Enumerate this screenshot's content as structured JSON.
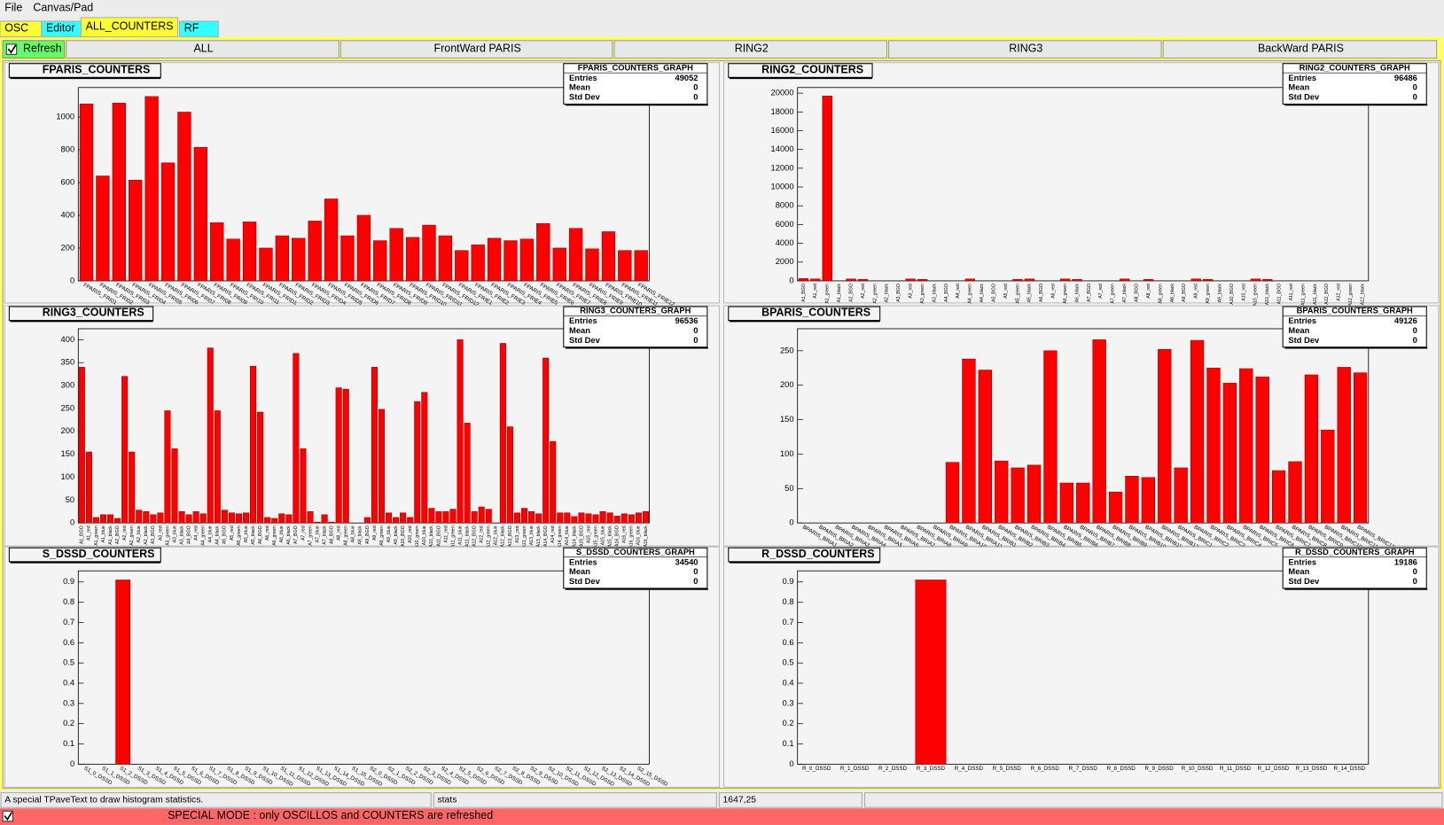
{
  "menu": [
    "File",
    "Canvas/Pad"
  ],
  "tabs": [
    "OSC",
    "Editor",
    "ALL_COUNTERS",
    "RF"
  ],
  "refresh": "Refresh",
  "buttons": [
    "ALL",
    "FrontWard PARIS",
    "RING2",
    "RING3",
    "BackWard PARIS"
  ],
  "chart_data": [
    {
      "type": "bar",
      "title": "FPARIS_COUNTERS",
      "color": "#ff0000",
      "categories": [
        "FPARIS_FRI01",
        "FPARIS_FRI02",
        "FPARIS_FRI03",
        "FPARIS_FRI04",
        "FPARIS_FRI05",
        "FPARIS_FRI06",
        "FPARIS_FRI07",
        "FPARIS_FRI08",
        "FPARIS_FRI09",
        "FPARIS_FRI10",
        "FPARIS_FRI11",
        "FPARIS_FRID1",
        "FPARIS_FRID2",
        "FPARIS_FRID3",
        "FPARIS_FRID4",
        "FPARIS_FRID5",
        "FPARIS_FRID6",
        "FPARIS_FRID7",
        "FPARIS_FRID8",
        "FPARIS_FRID9",
        "FPARIS_FRID10",
        "FPARIS_FRID11",
        "FPARIS_FRID12",
        "FPARIS_FRIE1",
        "FPARIS_FRIE2",
        "FPARIS_FRIE3",
        "FPARIS_FRIE4",
        "FPARIS_FRIE5",
        "FPARIS_FRIE6",
        "FPARIS_FRIE7",
        "FPARIS_FRIE8",
        "FPARIS_FRIE9",
        "FPARIS_FRIE10",
        "FPARIS_FRIE11",
        "FPARIS_FRIE12"
      ],
      "values": [
        1080,
        640,
        1085,
        615,
        1125,
        720,
        1030,
        815,
        355,
        255,
        360,
        200,
        275,
        260,
        365,
        500,
        275,
        400,
        245,
        320,
        265,
        340,
        275,
        185,
        220,
        260,
        245,
        255,
        350,
        200,
        320,
        195,
        300,
        185,
        185
      ],
      "ylim": [
        0,
        1180
      ],
      "yticks": [
        0,
        200,
        400,
        600,
        800,
        1000
      ],
      "stats": {
        "title": "FPARIS_COUNTERS_GRAPH",
        "rows": [
          {
            "label": "Entries",
            "value": 49052
          },
          {
            "label": "Mean",
            "value": 0
          },
          {
            "label": "Std Dev",
            "value": 0
          }
        ]
      }
    },
    {
      "type": "bar",
      "title": "RING2_COUNTERS",
      "color": "#ff0000",
      "categories": [
        "A1_BGO",
        "A1_red",
        "A1_green",
        "A1_black",
        "A2_BGO",
        "A2_red",
        "A2_green",
        "A2_black",
        "A3_BGO",
        "A3_red",
        "A3_green",
        "A3_black",
        "A4_BGO",
        "A4_red",
        "A4_green",
        "A4_black",
        "A5_BGO",
        "A5_red",
        "A5_green",
        "A5_black",
        "A6_BGO",
        "A6_red",
        "A6_green",
        "A6_black",
        "A7_BGO",
        "A7_red",
        "A7_green",
        "A7_black",
        "A8_BGO",
        "A8_red",
        "A8_green",
        "A8_black",
        "A9_BGO",
        "A9_red",
        "A9_green",
        "A9_black",
        "A10_BGO",
        "A10_red",
        "A10_green",
        "A10_black",
        "A11_BGO",
        "A11_red",
        "A11_green",
        "A11_black",
        "A12_BGO",
        "A12_red",
        "A12_green",
        "A12_black"
      ],
      "values": [
        250,
        200,
        19700,
        0,
        200,
        150,
        0,
        0,
        0,
        200,
        150,
        0,
        0,
        0,
        200,
        0,
        0,
        0,
        150,
        200,
        0,
        0,
        200,
        150,
        0,
        0,
        0,
        200,
        0,
        150,
        0,
        0,
        0,
        200,
        150,
        0,
        0,
        0,
        200,
        150,
        0,
        0,
        0,
        0,
        0,
        0,
        0,
        0
      ],
      "ylim": [
        0,
        20600
      ],
      "yticks": [
        0,
        2000,
        4000,
        6000,
        8000,
        10000,
        12000,
        14000,
        16000,
        18000,
        20000
      ],
      "stats": {
        "title": "RING2_COUNTERS_GRAPH",
        "rows": [
          {
            "label": "Entries",
            "value": 96486
          },
          {
            "label": "Mean",
            "value": 0
          },
          {
            "label": "Std Dev",
            "value": 0
          }
        ]
      }
    },
    {
      "type": "bar",
      "title": "RING3_COUNTERS",
      "color": "#ff0000",
      "categories": [
        "A1_BGO",
        "A1_red",
        "A1_green",
        "A1_blue",
        "A1_black",
        "A2_BGO",
        "A2_red",
        "A2_green",
        "A2_blue",
        "A2_black",
        "A3_BGO",
        "A3_red",
        "A3_green",
        "A3_blue",
        "A3_black",
        "A4_BGO",
        "A4_red",
        "A4_green",
        "A4_blue",
        "A4_black",
        "A5_BGO",
        "A5_red",
        "A5_green",
        "A5_blue",
        "A5_black",
        "A6_BGO",
        "A6_red",
        "A6_green",
        "A6_blue",
        "A6_black",
        "A7_BGO",
        "A7_red",
        "A7_green",
        "A7_blue",
        "A7_black",
        "A8_BGO",
        "A8_red",
        "A8_green",
        "A8_blue",
        "A8_black",
        "A9_BGO",
        "A9_red",
        "A9_green",
        "A9_blue",
        "A9_black",
        "A10_BGO",
        "A10_red",
        "A10_green",
        "A10_blue",
        "A10_black",
        "A11_BGO",
        "A11_red",
        "A11_green",
        "A11_blue",
        "A11_black",
        "A12_BGO",
        "A12_red",
        "A12_green",
        "A12_blue",
        "A12_black",
        "A13_BGO",
        "A13_red",
        "A13_green",
        "A13_blue",
        "A13_black",
        "A14_BGO",
        "A14_red",
        "A14_green",
        "A14_blue",
        "A14_black",
        "A15_BGO",
        "A15_red",
        "A15_green",
        "A15_blue",
        "A15_black",
        "A16_BGO",
        "A16_red",
        "A16_green",
        "A16_blue",
        "A16_black"
      ],
      "values": [
        340,
        155,
        12,
        18,
        18,
        10,
        320,
        155,
        28,
        25,
        18,
        22,
        245,
        162,
        25,
        18,
        25,
        20,
        382,
        245,
        28,
        22,
        20,
        22,
        342,
        242,
        12,
        10,
        20,
        18,
        370,
        162,
        25,
        2,
        18,
        2,
        295,
        292,
        0,
        0,
        12,
        340,
        248,
        22,
        12,
        22,
        12,
        265,
        285,
        32,
        25,
        25,
        30,
        400,
        218,
        25,
        35,
        30,
        0,
        392,
        210,
        22,
        32,
        25,
        20,
        360,
        178,
        22,
        22,
        14,
        22,
        20,
        18,
        25,
        22,
        15,
        20,
        18,
        22,
        25
      ],
      "ylim": [
        0,
        424
      ],
      "yticks": [
        0,
        50,
        100,
        150,
        200,
        250,
        300,
        350,
        400
      ],
      "stats": {
        "title": "RING3_COUNTERS_GRAPH",
        "rows": [
          {
            "label": "Entries",
            "value": 96536
          },
          {
            "label": "Mean",
            "value": 0
          },
          {
            "label": "Std Dev",
            "value": 0
          }
        ]
      }
    },
    {
      "type": "bar",
      "title": "BPARIS_COUNTERS",
      "color": "#ff0000",
      "categories": [
        "BPARIS_BRIA1",
        "BPARIS_BRIA2",
        "BPARIS_BRIA3",
        "BPARIS_BRIA4",
        "BPARIS_BRIA5",
        "BPARIS_BRIA6",
        "BPARIS_BRIA7",
        "BPARIS_BRIA8",
        "BPARIS_BRIA9",
        "BPARIS_BRIA10",
        "BPARIS_BRIA11",
        "BPARIS_BRIB1",
        "BPARIS_BRIB2",
        "BPARIS_BRIB3",
        "BPARIS_BRIB4",
        "BPARIS_BRIB5",
        "BPARIS_BRIB6",
        "BPARIS_BRIB7",
        "BPARIS_BRIB8",
        "BPARIS_BRIB9",
        "BPARIS_BRIB10",
        "BPARIS_BRIB11",
        "BPARIS_BRIB12",
        "BPARIS_BRIC1",
        "BPARIS_BRIC2",
        "BPARIS_BRIC3",
        "BPARIS_BRIC4",
        "BPARIS_BRIC5",
        "BPARIS_BRIC6",
        "BPARIS_BRIC7",
        "BPARIS_BRIC8",
        "BPARIS_BRIC9",
        "BPARIS_BRIC10",
        "BPARIS_BRIC11",
        "BPARIS_BRIC12"
      ],
      "values": [
        0,
        0,
        0,
        0,
        0,
        0,
        0,
        0,
        0,
        88,
        238,
        222,
        90,
        80,
        84,
        250,
        58,
        58,
        266,
        45,
        68,
        66,
        252,
        80,
        265,
        225,
        203,
        224,
        212,
        76,
        89,
        215,
        135,
        226,
        218
      ],
      "ylim": [
        0,
        282
      ],
      "yticks": [
        0,
        50,
        100,
        150,
        200,
        250
      ],
      "stats": {
        "title": "BPARIS_COUNTERS_GRAPH",
        "rows": [
          {
            "label": "Entries",
            "value": 49126
          },
          {
            "label": "Mean",
            "value": 0
          },
          {
            "label": "Std Dev",
            "value": 0
          }
        ]
      }
    },
    {
      "type": "bar",
      "title": "S_DSSD_COUNTERS",
      "color": "#ff0000",
      "categories": [
        "S1_0_DSSD",
        "S1_1_DSSD",
        "S1_2_DSSD",
        "S1_3_DSSD",
        "S1_4_DSSD",
        "S1_5_DSSD",
        "S1_6_DSSD",
        "S1_7_DSSD",
        "S1_8_DSSD",
        "S1_9_DSSD",
        "S1_10_DSSD",
        "S1_11_DSSD",
        "S1_12_DSSD",
        "S1_13_DSSD",
        "S1_14_DSSD",
        "S1_15_DSSD",
        "S2_0_DSSD",
        "S2_1_DSSD",
        "S2_2_DSSD",
        "S2_3_DSSD",
        "S2_4_DSSD",
        "S2_5_DSSD",
        "S2_6_DSSD",
        "S2_7_DSSD",
        "S2_8_DSSD",
        "S2_9_DSSD",
        "S2_10_DSSD",
        "S2_11_DSSD",
        "S2_12_DSSD",
        "S2_13_DSSD",
        "S2_14_DSSD",
        "S2_15_DSSD"
      ],
      "values": [
        0,
        0,
        0.91,
        0,
        0,
        0,
        0,
        0,
        0,
        0,
        0,
        0,
        0,
        0,
        0,
        0,
        0,
        0,
        0,
        0,
        0,
        0,
        0,
        0,
        0,
        0,
        0,
        0,
        0,
        0,
        0,
        0
      ],
      "ylim": [
        0,
        0.955
      ],
      "yticks": [
        0,
        0.1,
        0.2,
        0.3,
        0.4,
        0.5,
        0.6,
        0.7,
        0.8,
        0.9
      ],
      "stats": {
        "title": "S_DSSD_COUNTERS_GRAPH",
        "rows": [
          {
            "label": "Entries",
            "value": 34540
          },
          {
            "label": "Mean",
            "value": 0
          },
          {
            "label": "Std Dev",
            "value": 0
          }
        ]
      }
    },
    {
      "type": "bar",
      "title": "R_DSSD_COUNTERS",
      "color": "#ff0000",
      "categories": [
        "R_0_DSSD",
        "R_1_DSSD",
        "R_2_DSSD",
        "R_3_DSSD",
        "R_4_DSSD",
        "R_5_DSSD",
        "R_6_DSSD",
        "R_7_DSSD",
        "R_8_DSSD",
        "R_9_DSSD",
        "R_10_DSSD",
        "R_11_DSSD",
        "R_12_DSSD",
        "R_13_DSSD",
        "R_14_DSSD"
      ],
      "values": [
        0,
        0,
        0,
        0.91,
        0,
        0,
        0,
        0,
        0,
        0,
        0,
        0,
        0,
        0,
        0
      ],
      "ylim": [
        0,
        0.955
      ],
      "yticks": [
        0,
        0.1,
        0.2,
        0.3,
        0.4,
        0.5,
        0.6,
        0.7,
        0.8,
        0.9
      ],
      "stats": {
        "title": "R_DSSD_COUNTERS_GRAPH",
        "rows": [
          {
            "label": "Entries",
            "value": 19186
          },
          {
            "label": "Mean",
            "value": 0
          },
          {
            "label": "Std Dev",
            "value": 0
          }
        ]
      }
    }
  ],
  "status_bar": [
    "A special TPaveText to draw histogram statistics.",
    "stats",
    "1647,25"
  ],
  "special_mode": "SPECIAL MODE : only OSCILLOS and COUNTERS are refreshed"
}
